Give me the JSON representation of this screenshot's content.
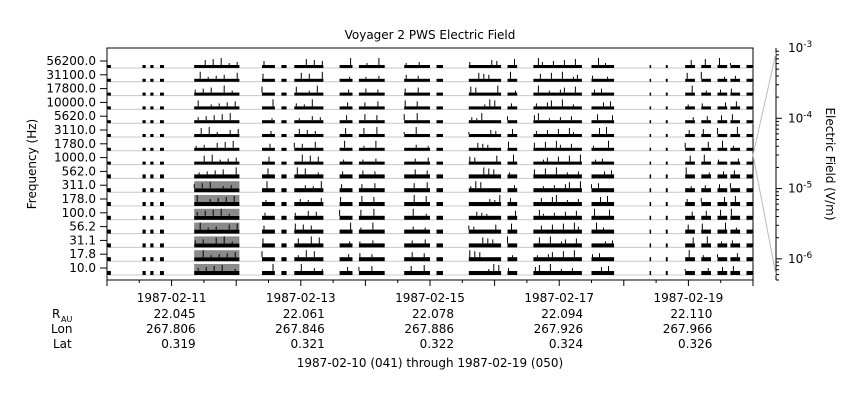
{
  "chart_data": {
    "type": "line",
    "title": "Voyager 2 PWS Electric Field",
    "ylabel": "Frequency (Hz)",
    "colorbar_label": "Electric Field (V/m)",
    "scale": "log",
    "channels": [
      "10.0",
      "17.8",
      "31.1",
      "56.2",
      "100.0",
      "178.0",
      "311.0",
      "562.0",
      "1000.0",
      "1780.0",
      "3110.0",
      "5620.0",
      "10000.0",
      "17800.0",
      "31100.0",
      "56200.0"
    ],
    "colorbar_ticks": [
      {
        "base": "10",
        "exp": "-3",
        "value": 0.001
      },
      {
        "base": "10",
        "exp": "-4",
        "value": 0.0001
      },
      {
        "base": "10",
        "exp": "-5",
        "value": 1e-05
      },
      {
        "base": "10",
        "exp": "-6",
        "value": 1e-06
      }
    ],
    "colorbar_range": [
      5e-07,
      0.001
    ],
    "x_dates": [
      "1987-02-11",
      "1987-02-13",
      "1987-02-15",
      "1987-02-17",
      "1987-02-19"
    ],
    "x_range_days": [
      0,
      10
    ],
    "ephemeris": {
      "labels": {
        "r": "R",
        "r_sub": "AU",
        "lon": "Lon",
        "lat": "Lat"
      },
      "r": [
        "22.045",
        "22.061",
        "22.078",
        "22.094",
        "22.110"
      ],
      "lon": [
        "267.806",
        "267.846",
        "267.886",
        "267.926",
        "267.966"
      ],
      "lat": [
        "0.319",
        "0.321",
        "0.322",
        "0.324",
        "0.326"
      ]
    },
    "date_range_label": "1987-02-10 (041) through 1987-02-19 (050)",
    "data_segments_days": [
      [
        0.0,
        0.06
      ],
      [
        0.55,
        0.6
      ],
      [
        0.67,
        0.72
      ],
      [
        0.82,
        0.88
      ],
      [
        1.35,
        2.05
      ],
      [
        2.4,
        2.6
      ],
      [
        2.7,
        2.78
      ],
      [
        2.9,
        3.35
      ],
      [
        3.6,
        3.8
      ],
      [
        3.9,
        4.3
      ],
      [
        4.6,
        5.0
      ],
      [
        5.1,
        5.2
      ],
      [
        5.6,
        6.1
      ],
      [
        6.2,
        6.35
      ],
      [
        6.6,
        7.35
      ],
      [
        7.5,
        7.85
      ],
      [
        8.4,
        8.42
      ],
      [
        8.65,
        8.68
      ],
      [
        8.95,
        9.1
      ],
      [
        9.2,
        9.35
      ],
      [
        9.45,
        9.6
      ],
      [
        9.65,
        9.8
      ],
      [
        9.9,
        10.0
      ]
    ]
  }
}
